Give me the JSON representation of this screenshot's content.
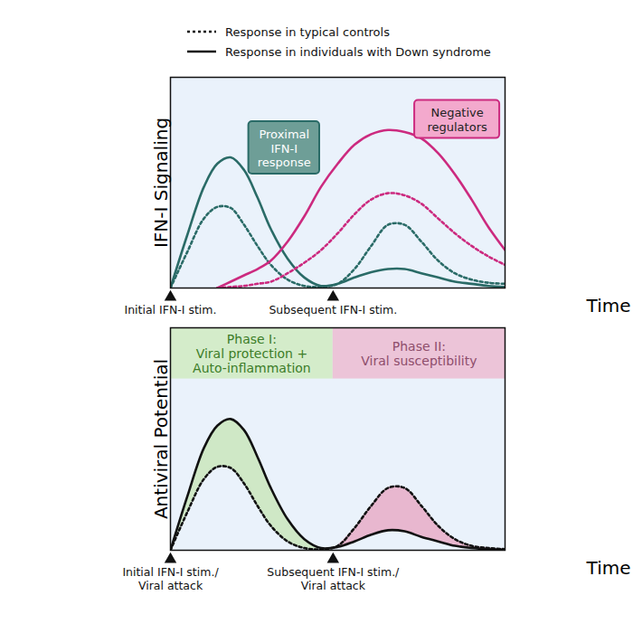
{
  "chart_data": [
    {
      "type": "line",
      "y_label": "IFN-I Signaling",
      "x_label": "Time",
      "xlim": [
        0,
        100
      ],
      "ylim": [
        0,
        100
      ],
      "xticks": [],
      "yticks": [],
      "tick_labels": false,
      "grid": false,
      "x": [
        0,
        5,
        10,
        14,
        18,
        22,
        26,
        30,
        35,
        40,
        45,
        50,
        55,
        60,
        65,
        70,
        75,
        80,
        85,
        90,
        95,
        100
      ],
      "series": [
        {
          "name": "Response in typical controls",
          "color": "#2a6b67",
          "line_style": "dotted",
          "values": [
            0,
            17,
            33,
            38.5,
            38,
            30,
            20,
            11,
            4,
            1,
            0.5,
            2,
            9,
            20,
            30,
            30,
            22,
            13,
            7,
            4,
            2.5,
            2
          ]
        },
        {
          "name": "Response in individuals with Down syndrome",
          "color": "#2a6b67",
          "line_style": "solid",
          "values": [
            0,
            25,
            48,
            59,
            62,
            56,
            43,
            28,
            14,
            5,
            1,
            2,
            5,
            7.5,
            9,
            9,
            7,
            5,
            3,
            2,
            1,
            0.5
          ]
        },
        {
          "name": "Response in typical controls",
          "color": "#cc2a7f",
          "line_style": "dotted",
          "values": [
            null,
            null,
            null,
            0,
            0.5,
            1,
            2,
            3,
            7,
            12,
            18,
            26,
            35,
            42,
            45,
            44,
            40,
            33,
            26,
            20,
            15,
            11
          ]
        },
        {
          "name": "Response in individuals with Down syndrome",
          "color": "#cc2a7f",
          "line_style": "solid",
          "values": [
            null,
            null,
            null,
            0,
            3,
            6,
            9,
            13,
            22,
            34,
            48,
            59,
            68,
            73,
            75,
            74,
            71,
            64,
            54,
            42,
            29,
            18
          ]
        }
      ],
      "annotations": [
        {
          "text": "Proximal\nIFN-I\nresponse",
          "x": 34,
          "y": 66.5,
          "color": "#6e9e97",
          "border": "#2a6b67",
          "text_color": "#ffffff"
        },
        {
          "text": "Negative\nregulators",
          "x": 85.7,
          "y": 80,
          "color": "#f3a9cd",
          "border": "#cc2a7f",
          "text_color": "#222222"
        }
      ],
      "markers": [
        {
          "x": 0,
          "label": "Initial IFN-I stim."
        },
        {
          "x": 48.6,
          "label": "Subsequent IFN-I stim."
        }
      ]
    },
    {
      "type": "line",
      "y_label": "Antiviral Potential",
      "x_label": "Time",
      "xlim": [
        0,
        100
      ],
      "ylim": [
        0,
        100
      ],
      "xticks": [],
      "yticks": [],
      "tick_labels": false,
      "grid": false,
      "x": [
        0,
        5,
        10,
        14,
        18,
        22,
        26,
        30,
        35,
        40,
        45,
        50,
        55,
        60,
        65,
        70,
        75,
        80,
        85,
        90,
        95,
        100
      ],
      "series": [
        {
          "name": "Response in typical controls",
          "color": "#111111",
          "line_style": "dotted",
          "values": [
            0,
            17,
            32,
            37.5,
            37,
            30,
            20,
            11,
            4,
            1,
            0.5,
            2,
            10,
            20,
            28,
            28,
            20,
            11,
            5,
            2,
            1,
            0.5
          ]
        },
        {
          "name": "Response in individuals with Down syndrome",
          "color": "#111111",
          "line_style": "solid",
          "values": [
            0,
            24,
            46,
            56,
            59,
            54,
            42,
            28,
            14,
            5,
            1,
            1.5,
            4,
            7,
            9,
            8.5,
            6,
            4,
            2,
            1,
            0.5,
            0.3
          ]
        }
      ],
      "phases": [
        {
          "label": "Phase I:\nViral protection +\nAuto-inflammation",
          "x1": 0,
          "x2": 48.6,
          "y1": 77,
          "y2": 100,
          "color": "#d4ecca",
          "area_color": "#cfe8c6",
          "text_color": "#3c7d28"
        },
        {
          "label": "Phase II:\nViral susceptibility",
          "x1": 48.6,
          "x2": 100,
          "y1": 77,
          "y2": 100,
          "color": "#ecc4d8",
          "area_color": "#e8b7cf",
          "text_color": "#8e4d6b"
        }
      ],
      "markers": [
        {
          "x": 0,
          "label": "Initial IFN-I stim./\nViral attack"
        },
        {
          "x": 48.6,
          "label": "Subsequent IFN-I stim./\nViral attack"
        }
      ]
    }
  ]
}
